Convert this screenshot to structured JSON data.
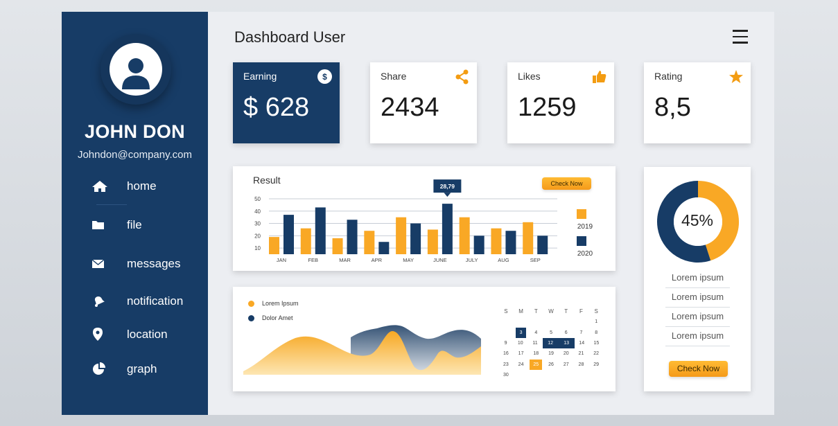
{
  "sidebar": {
    "user_name": "JOHN DON",
    "user_email": "Johndon@company.com",
    "nav": [
      {
        "label": "home",
        "icon": "home-icon"
      },
      {
        "label": "file",
        "icon": "folder-icon"
      },
      {
        "label": "messages",
        "icon": "mail-icon"
      },
      {
        "label": "notification",
        "icon": "bell-icon"
      },
      {
        "label": "location",
        "icon": "location-pin-icon"
      },
      {
        "label": "graph",
        "icon": "pie-chart-icon"
      }
    ]
  },
  "header": {
    "title": "Dashboard User"
  },
  "stats": {
    "earning": {
      "label": "Earning",
      "value": "$ 628",
      "badge": "$"
    },
    "share": {
      "label": "Share",
      "value": "2434"
    },
    "likes": {
      "label": "Likes",
      "value": "1259"
    },
    "rating": {
      "label": "Rating",
      "value": "8,5"
    }
  },
  "colors": {
    "navy": "#173c66",
    "orange": "#f9a825",
    "bg": "#eceef2"
  },
  "result_chart": {
    "title": "Result",
    "button_label": "Check Now",
    "tooltip": "28,79"
  },
  "chart_data": [
    {
      "type": "bar",
      "title": "Result",
      "categories": [
        "JAN",
        "FEB",
        "MAR",
        "APR",
        "MAY",
        "JUNE",
        "JULY",
        "AUG",
        "SEP"
      ],
      "series": [
        {
          "name": "2019",
          "color": "#f9a825",
          "values": [
            19,
            26,
            18,
            24,
            35,
            25,
            35,
            26,
            31
          ]
        },
        {
          "name": "2020",
          "color": "#173c66",
          "values": [
            37,
            43,
            33,
            15,
            30,
            46,
            20,
            24,
            20
          ]
        }
      ],
      "yticks": [
        10,
        20,
        30,
        40,
        50
      ],
      "ylim": [
        5,
        50
      ],
      "annotation": "28,79",
      "grid": true,
      "legend": "right"
    },
    {
      "type": "area",
      "series": [
        {
          "name": "Lorem Ipsum",
          "color": "#f9a825"
        },
        {
          "name": "Dolor Amet",
          "color": "#173c66"
        }
      ],
      "legend": "top-left"
    },
    {
      "type": "pie",
      "values": [
        45,
        55
      ],
      "colors": [
        "#f9a825",
        "#173c66"
      ],
      "center_label": "45%"
    }
  ],
  "wave_card": {
    "legend": [
      {
        "label": "Lorem Ipsum",
        "color": "#f9a825"
      },
      {
        "label": "Dolor Amet",
        "color": "#173c66"
      }
    ]
  },
  "calendar": {
    "days": [
      "S",
      "M",
      "T",
      "W",
      "T",
      "F",
      "S"
    ],
    "weeks": [
      [
        "",
        "",
        "",
        "",
        "",
        "",
        "1"
      ],
      [
        "",
        "3",
        "4",
        "5",
        "6",
        "7",
        "8"
      ],
      [
        "9",
        "10",
        "11",
        "12",
        "13",
        "14",
        "15"
      ],
      [
        "16",
        "17",
        "18",
        "19",
        "20",
        "21",
        "22"
      ],
      [
        "23",
        "24",
        "25",
        "26",
        "27",
        "28",
        "29"
      ],
      [
        "30",
        "",
        "",
        "",
        "",
        "",
        ""
      ]
    ],
    "highlight_navy": [
      "3",
      "12",
      "13"
    ],
    "highlight_orange": [
      "25"
    ]
  },
  "donut_card": {
    "center_label": "45%",
    "items": [
      "Lorem ipsum",
      "Lorem ipsum",
      "Lorem ipsum",
      "Lorem ipsum"
    ],
    "button_label": "Check Now"
  }
}
